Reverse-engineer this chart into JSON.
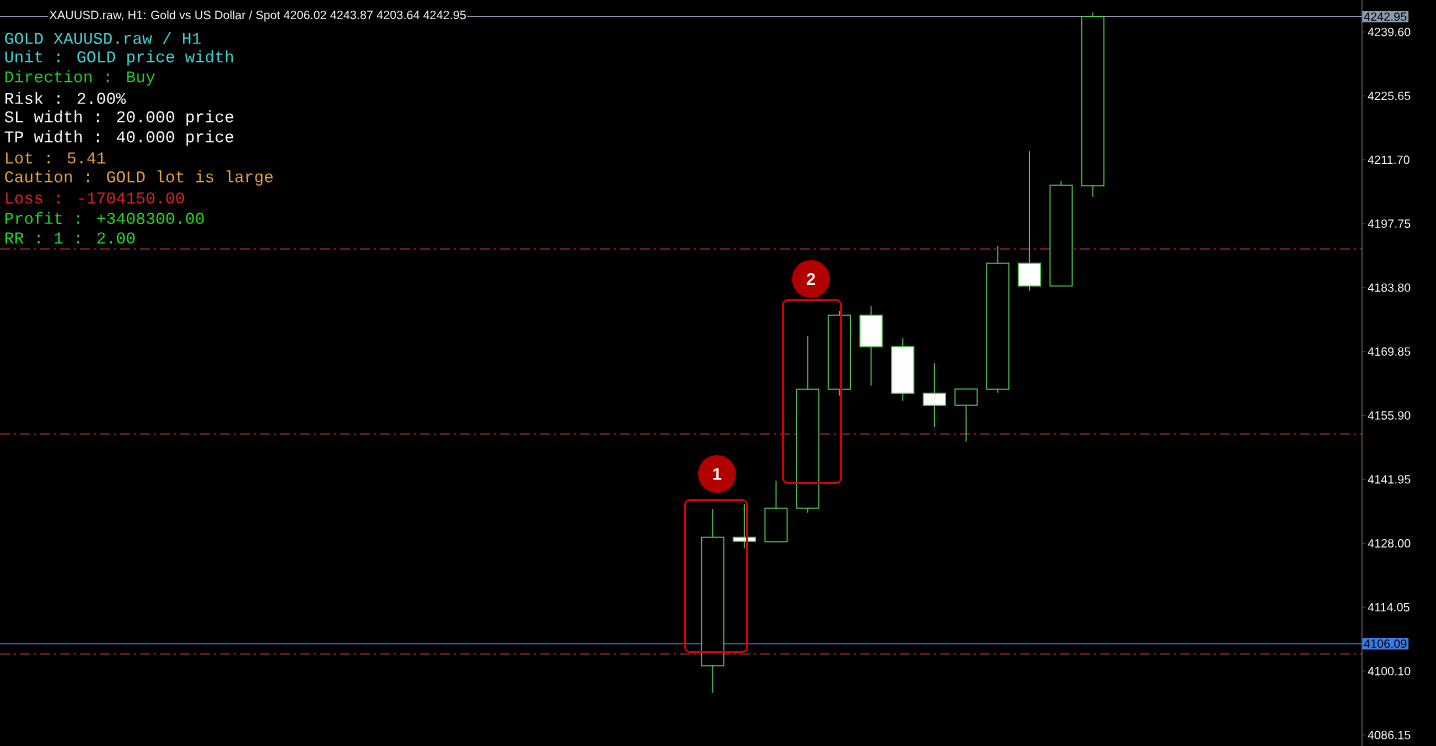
{
  "chart_data": {
    "type": "candlestick",
    "title": "XAUUSD.raw, H1: Gold vs US Dollar / Spot 4206.02 4243.87 4203.64 4242.95",
    "categories": [
      null,
      null,
      null,
      null,
      null,
      null,
      null,
      null,
      null,
      null,
      null,
      null,
      null,
      null,
      null,
      null,
      null,
      null,
      null,
      null,
      null,
      null,
      null,
      null,
      null,
      null,
      null,
      null,
      null,
      null,
      null,
      null,
      null,
      null,
      null,
      null,
      null,
      null,
      null,
      null,
      null,
      null,
      null
    ],
    "ohlc": [
      null,
      null,
      null,
      null,
      null,
      null,
      null,
      null,
      null,
      null,
      null,
      null,
      null,
      null,
      null,
      null,
      null,
      null,
      null,
      null,
      null,
      null,
      [
        4101.28,
        4135.49,
        4095.39,
        4129.31
      ],
      [
        4129.31,
        4136.58,
        4126.91,
        4128.44
      ],
      [
        4128.35,
        4141.66,
        4128.35,
        4135.64
      ],
      [
        4135.64,
        4173.25,
        4134.68,
        4161.61
      ],
      [
        4161.61,
        4178.7,
        4160.22,
        4177.76
      ],
      [
        4177.76,
        4179.79,
        4162.4,
        4170.91
      ],
      [
        4170.91,
        4172.74,
        4159.12,
        4160.74
      ],
      [
        4160.74,
        4167.29,
        4153.32,
        4158.12
      ],
      [
        4158.12,
        4161.68,
        4150.18,
        4161.68
      ],
      [
        4161.6,
        4192.89,
        4160.87,
        4189.11
      ],
      [
        4189.11,
        4213.63,
        4183.13,
        4184.16
      ],
      [
        4184.16,
        4207.08,
        4184.16,
        4206.14
      ],
      [
        4206.02,
        4243.87,
        4203.64,
        4242.95
      ],
      null,
      null,
      null,
      null,
      null,
      null,
      null,
      null
    ],
    "color": "#5ad15a",
    "ylim": [
      4083.76,
      4246.58
    ],
    "yticks": [
      {
        "value": 4086.15,
        "label": "4086.15"
      },
      {
        "value": 4100.1,
        "label": "4100.10"
      },
      {
        "value": 4114.05,
        "label": "4114.05"
      },
      {
        "value": 4128,
        "label": "4128.00"
      },
      {
        "value": 4141.95,
        "label": "4141.95"
      },
      {
        "value": 4155.9,
        "label": "4155.90"
      },
      {
        "value": 4169.85,
        "label": "4169.85"
      },
      {
        "value": 4183.8,
        "label": "4183.80"
      },
      {
        "value": 4197.75,
        "label": "4197.75"
      },
      {
        "value": 4211.7,
        "label": "4211.70"
      },
      {
        "value": 4225.65,
        "label": "4225.65"
      },
      {
        "value": 4239.6,
        "label": "4239.60"
      }
    ],
    "ref_lines": [
      {
        "axis": "y",
        "value": 4192.24,
        "color": "#c83232",
        "line_style": "dashed"
      },
      {
        "axis": "y",
        "value": 4151.86,
        "color": "#c83232",
        "line_style": "dashed"
      },
      {
        "axis": "y",
        "value": 4103.84,
        "color": "#c83232",
        "line_style": "dashed"
      },
      {
        "axis": "y",
        "value": 4106.09,
        "label": "4106.09",
        "color": "#3a7de8",
        "line_style": "solid"
      },
      {
        "axis": "y",
        "value": 4242.95,
        "label": "4242.95",
        "color": "#8c9aae",
        "line_style": "solid"
      }
    ],
    "annotations": [
      "GOLD XAUUSD.raw / H1",
      "Unit : GOLD price width",
      "Direction : Buy",
      "Risk : 2.00%",
      "SL width : 20.000 price",
      "TP width : 40.000 price",
      "Lot : 5.41",
      "Caution : GOLD lot is large",
      "Loss : -1704150.00",
      "Profit : +3408300.00",
      "RR : 1 : 2.00",
      "1",
      "2"
    ]
  }
}
